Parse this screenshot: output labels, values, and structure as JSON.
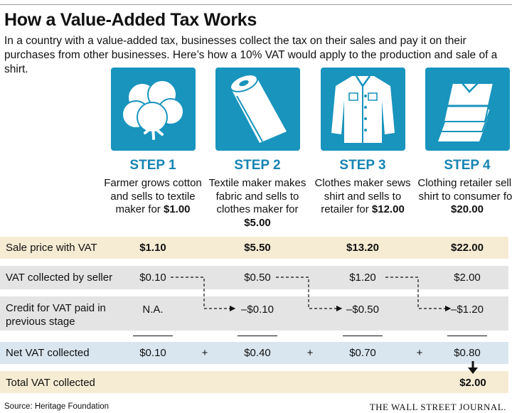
{
  "title": "How a Value-Added Tax Works",
  "subtitle": "In a country with a value-added tax, businesses collect the tax on their sales and pay it on their purchases from other businesses. Here’s how a 10% VAT would apply to the production and sale of a shirt.",
  "colors": {
    "accent": "#1894bd",
    "step_text": "#1584b3",
    "tan_row": "#f6ecd3",
    "gray_row": "#e4e4e4",
    "blue_row": "#d9e6f0"
  },
  "steps": [
    {
      "label": "STEP 1",
      "icon": "cotton-boll-icon",
      "desc": "Farmer grows cotton and sells to textile maker for",
      "price": "$1.00"
    },
    {
      "label": "STEP 2",
      "icon": "fabric-roll-icon",
      "desc": "Textile maker makes fabric and sells to clothes maker for",
      "price": "$5.00"
    },
    {
      "label": "STEP 3",
      "icon": "shirt-icon",
      "desc": "Clothes maker sews shirt and sells to retailer for",
      "price": "$12.00"
    },
    {
      "label": "STEP 4",
      "icon": "folded-shirts-icon",
      "desc": "Clothing retailer sells shirt to consumer for",
      "price": "$20.00"
    }
  ],
  "table": {
    "sale_price": {
      "label": "Sale price with VAT",
      "values": [
        "$1.10",
        "$5.50",
        "$13.20",
        "$22.00"
      ]
    },
    "vat_collected": {
      "label": "VAT collected by seller",
      "values": [
        "$0.10",
        "$0.50",
        "$1.20",
        "$2.00"
      ]
    },
    "credit": {
      "label_line1": "Credit for VAT paid in",
      "label_line2": "previous stage",
      "values": [
        "N.A.",
        "–$0.10",
        "–$0.50",
        "–$1.20"
      ]
    },
    "net_vat": {
      "label": "Net VAT collected",
      "values": [
        "$0.10",
        "$0.40",
        "$0.70",
        "$0.80"
      ],
      "operator": "+"
    },
    "total": {
      "label": "Total VAT collected",
      "value": "$2.00"
    }
  },
  "source": "Source: Heritage Foundation",
  "publisher": "THE WALL STREET JOURNAL."
}
